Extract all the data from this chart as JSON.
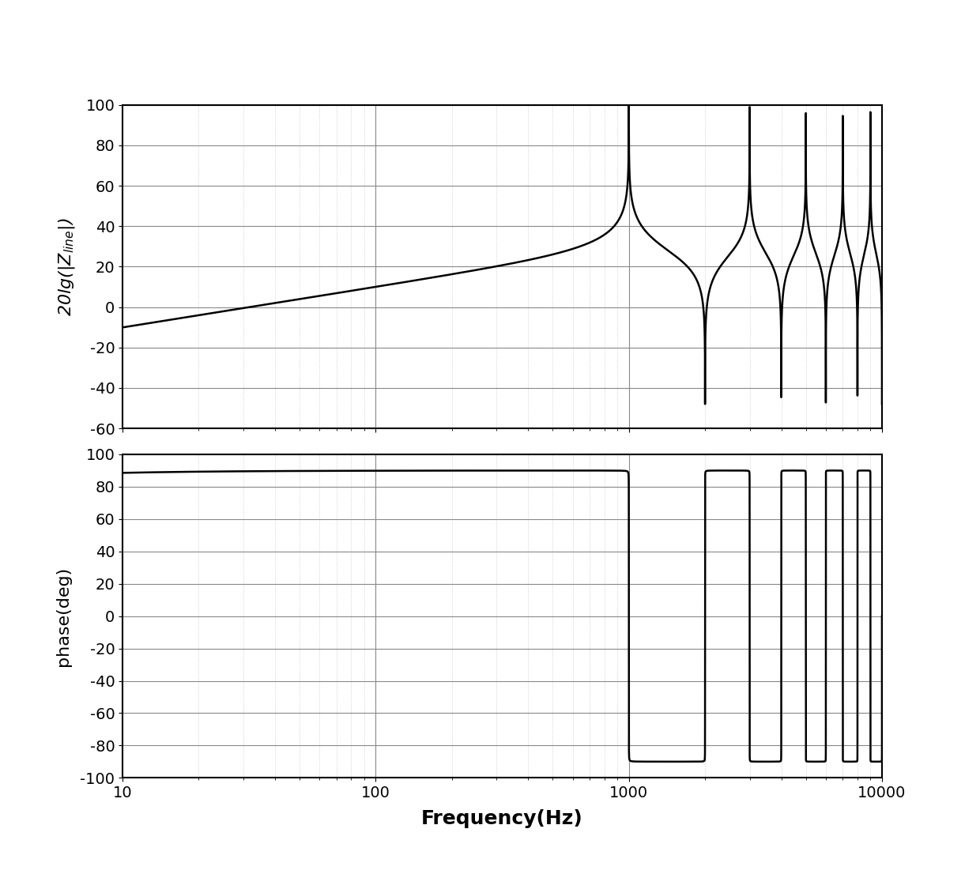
{
  "freq_min": 10,
  "freq_max": 10000,
  "mag_ylim": [
    -60,
    100
  ],
  "mag_yticks": [
    -60,
    -40,
    -20,
    0,
    20,
    40,
    60,
    80,
    100
  ],
  "phase_ylim": [
    -100,
    100
  ],
  "phase_yticks": [
    -100,
    -80,
    -60,
    -40,
    -20,
    0,
    20,
    40,
    60,
    80,
    100
  ],
  "xlabel": "Frequency(Hz)",
  "ylabel_mag": "20lg(|$Z_{line}$|)",
  "ylabel_phase": "phase(deg)",
  "line_color": "#000000",
  "line_width": 1.8,
  "background_color": "#ffffff",
  "L0": 0.005,
  "C0": 1.25e-05,
  "R0": 0.008,
  "G0": 0.0,
  "d": 1.0,
  "n_points": 80000,
  "major_grid_color": "#888888",
  "major_grid_lw": 0.8,
  "major_grid_ls": "-",
  "minor_grid_color": "#aaaaaa",
  "minor_grid_lw": 0.4,
  "minor_grid_ls": ":",
  "spine_lw": 1.5,
  "tick_fontsize": 14,
  "ylabel_fontsize": 16,
  "xlabel_fontsize": 18
}
